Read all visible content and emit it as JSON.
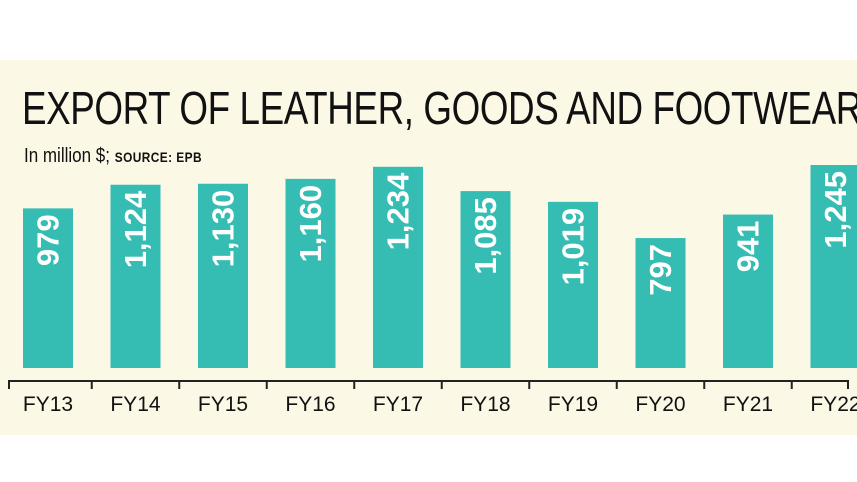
{
  "chart_data": {
    "type": "bar",
    "title": "EXPORT OF LEATHER, GOODS AND FOOTWEAR",
    "unit_label": "In million $;",
    "source_label": "SOURCE: EPB",
    "categories": [
      "FY13",
      "FY14",
      "FY15",
      "FY16",
      "FY17",
      "FY18",
      "FY19",
      "FY20",
      "FY21",
      "FY22"
    ],
    "values": [
      979,
      1124,
      1130,
      1160,
      1234,
      1085,
      1019,
      797,
      941,
      1245
    ],
    "value_labels": [
      "979",
      "1,124",
      "1,130",
      "1,160",
      "1,234",
      "1,085",
      "1,019",
      "797",
      "941",
      "1,245"
    ],
    "ylim": [
      0,
      1245
    ],
    "grid": false,
    "legend": "none",
    "colors": {
      "bar": "#36bdb3",
      "label": "#ffffff",
      "axis": "#222222",
      "background": "#fcf8e6"
    }
  }
}
